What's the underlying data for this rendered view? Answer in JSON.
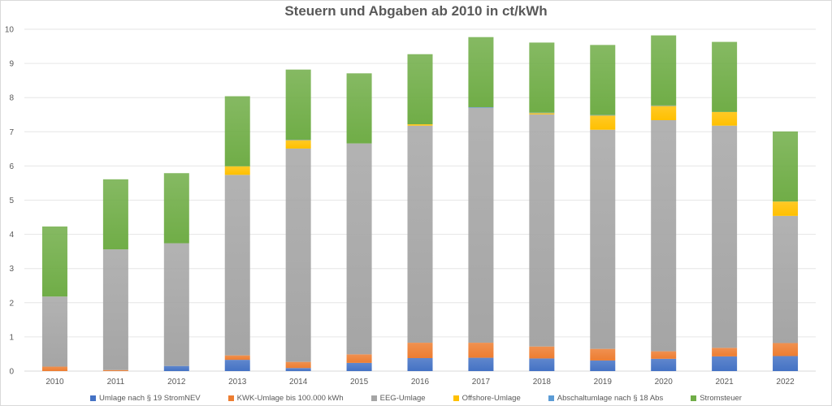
{
  "chart_data": {
    "type": "bar",
    "stacked": true,
    "title": "Steuern und Abgaben ab 2010 in ct/kWh",
    "xlabel": "",
    "ylabel": "",
    "ylim": [
      0,
      10
    ],
    "yticks": [
      0,
      1,
      2,
      3,
      4,
      5,
      6,
      7,
      8,
      9,
      10
    ],
    "grid": true,
    "legend_position": "bottom",
    "categories": [
      "2010",
      "2011",
      "2012",
      "2013",
      "2014",
      "2015",
      "2016",
      "2017",
      "2018",
      "2019",
      "2020",
      "2021",
      "2022"
    ],
    "series": [
      {
        "name": "Umlage nach § 19 StromNEV",
        "color": "#4472c4",
        "values": [
          0.0,
          0.0,
          0.15,
          0.33,
          0.09,
          0.24,
          0.38,
          0.39,
          0.37,
          0.31,
          0.36,
          0.43,
          0.44
        ]
      },
      {
        "name": "KWK-Umlage bis 100.000 kWh",
        "color": "#ed7d31",
        "values": [
          0.13,
          0.03,
          0.0,
          0.13,
          0.18,
          0.25,
          0.45,
          0.44,
          0.35,
          0.34,
          0.22,
          0.25,
          0.38
        ]
      },
      {
        "name": "EEG-Umlage",
        "color": "#a5a5a5",
        "values": [
          2.05,
          3.53,
          3.59,
          5.28,
          6.24,
          6.17,
          6.35,
          6.88,
          6.79,
          6.41,
          6.76,
          6.5,
          3.72
        ]
      },
      {
        "name": "Offshore-Umlage",
        "color": "#ffc000",
        "values": [
          0.0,
          0.0,
          0.0,
          0.25,
          0.25,
          0.0,
          0.04,
          0.0,
          0.04,
          0.42,
          0.42,
          0.4,
          0.42
        ]
      },
      {
        "name": "Abschaltumlage nach § 18 Abs",
        "color": "#5b9bd5",
        "values": [
          0.0,
          0.0,
          0.0,
          0.0,
          0.01,
          0.0,
          0.0,
          0.01,
          0.01,
          0.01,
          0.01,
          0.0,
          0.0
        ]
      },
      {
        "name": "Stromsteuer",
        "color": "#70ad47",
        "values": [
          2.05,
          2.05,
          2.05,
          2.05,
          2.05,
          2.05,
          2.05,
          2.05,
          2.05,
          2.05,
          2.05,
          2.05,
          2.05
        ]
      }
    ]
  }
}
